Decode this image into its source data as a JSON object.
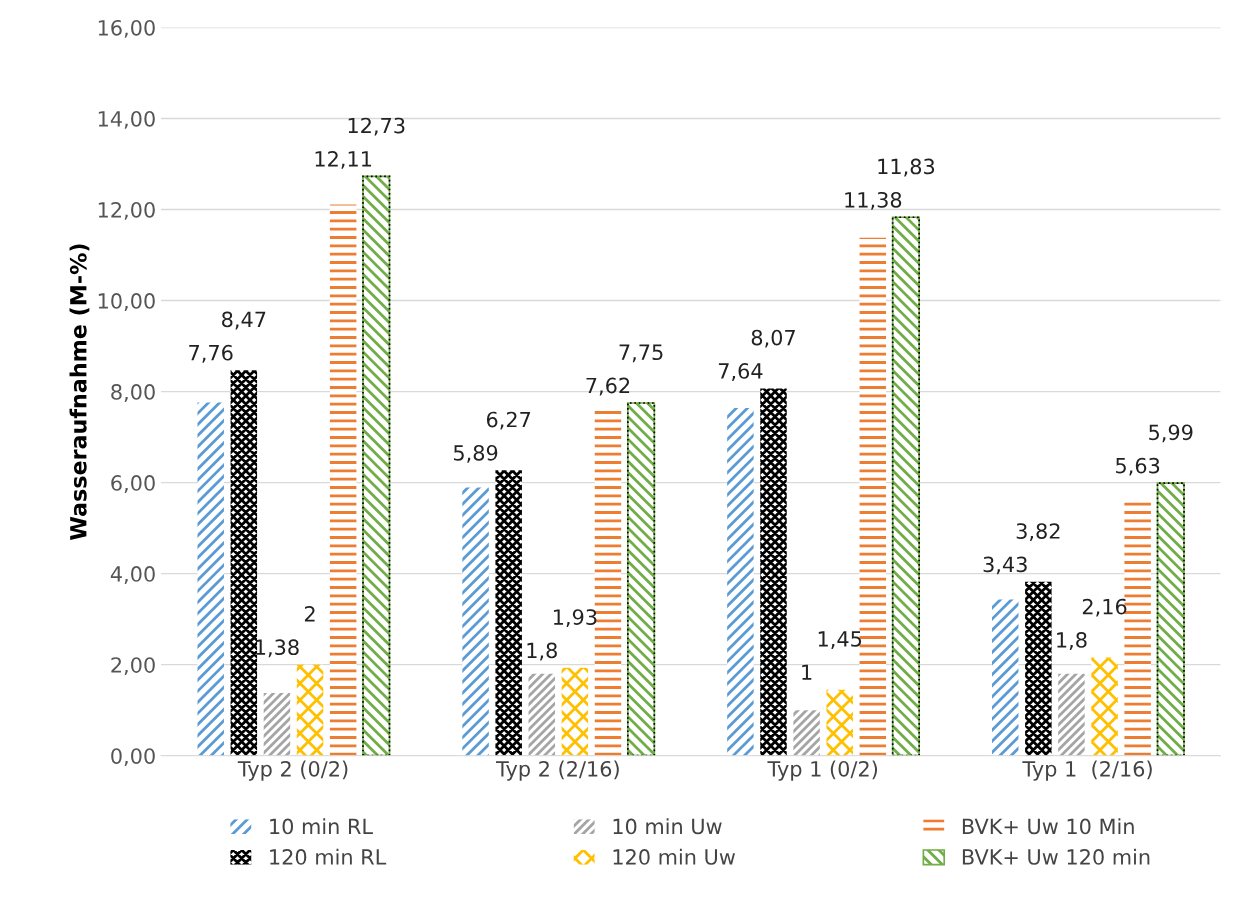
{
  "chart_data": {
    "type": "bar",
    "ylabel": "Wasseraufnahme (M-%)",
    "categories": [
      "Typ 2 (0/2)",
      "Typ 2 (2/16)",
      "Typ 1 (0/2)",
      "Typ 1  (2/16)"
    ],
    "series": [
      {
        "name": "10 min RL",
        "color": "#5b9bd5",
        "values": [
          7.76,
          5.89,
          7.64,
          3.43
        ],
        "value_labels": [
          "7,76",
          "5,89",
          "7,64",
          "3,43"
        ]
      },
      {
        "name": "120 min RL",
        "color": "#000000",
        "values": [
          8.47,
          6.27,
          8.07,
          3.82
        ],
        "value_labels": [
          "8,47",
          "6,27",
          "8,07",
          "3,82"
        ]
      },
      {
        "name": "10 min Uw",
        "color": "#a5a5a5",
        "values": [
          1.38,
          1.8,
          1,
          1.8
        ],
        "value_labels": [
          "1,38",
          "1,8",
          "1",
          "1,8"
        ]
      },
      {
        "name": "120 min Uw",
        "color": "#ffc000",
        "values": [
          2,
          1.93,
          1.45,
          2.16
        ],
        "value_labels": [
          "2",
          "1,93",
          "1,45",
          "2,16"
        ]
      },
      {
        "name": "BVK+ Uw 10 Min",
        "color": "#ed7d31",
        "values": [
          12.11,
          7.62,
          11.38,
          5.63
        ],
        "value_labels": [
          "12,11",
          "7,62",
          "11,38",
          "5,63"
        ]
      },
      {
        "name": "BVK+ Uw 120 min",
        "color": "#70ad47",
        "values": [
          12.73,
          7.75,
          11.83,
          5.99
        ],
        "value_labels": [
          "12,73",
          "7,75",
          "11,83",
          "5,99"
        ]
      }
    ],
    "ylim": [
      0,
      16
    ],
    "yticks": [
      {
        "value": 0,
        "label": "0,00"
      },
      {
        "value": 2,
        "label": "2,00"
      },
      {
        "value": 4,
        "label": "4,00"
      },
      {
        "value": 6,
        "label": "6,00"
      },
      {
        "value": 8,
        "label": "8,00"
      },
      {
        "value": 10,
        "label": "10,00"
      },
      {
        "value": 12,
        "label": "12,00"
      },
      {
        "value": 14,
        "label": "14,00"
      },
      {
        "value": 16,
        "label": "16,00"
      }
    ],
    "grid": "y",
    "legend": "bottom"
  }
}
